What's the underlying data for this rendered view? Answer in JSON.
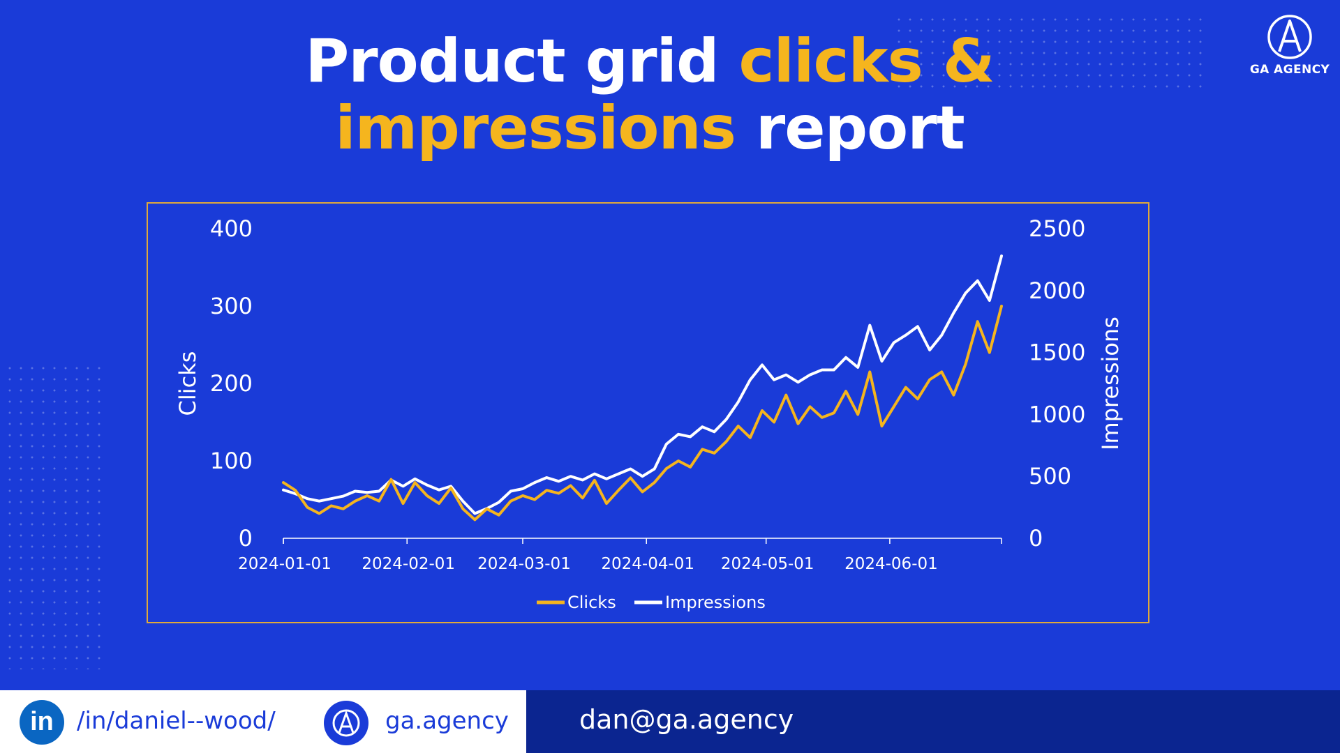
{
  "title": {
    "part1": "Product grid ",
    "part2": "clicks &",
    "part3": "impressions",
    "part4": " report"
  },
  "brand": {
    "logo_text": "GA AGENCY",
    "logo_icon": "ga-monogram-icon"
  },
  "footer": {
    "linkedin_icon": "linkedin-icon",
    "linkedin_label": "in",
    "linkedin_handle": "/in/daniel--wood/",
    "website": "ga.agency",
    "email": "dan@ga.agency"
  },
  "colors": {
    "background": "#1a3bd8",
    "accent": "#f5b51e",
    "clicks_line": "#f5b51e",
    "impressions_line": "#ffffff",
    "footer_dark": "#0b2590"
  },
  "chart_data": {
    "type": "line",
    "title": "",
    "xlabel": "",
    "ylabel": "Clicks",
    "y2label": "Impressions",
    "ylim": [
      0,
      400
    ],
    "y2lim": [
      0,
      2500
    ],
    "yticks": [
      "0",
      "100",
      "200",
      "300",
      "400"
    ],
    "y2ticks": [
      "0",
      "500",
      "1000",
      "1500",
      "2000",
      "2500"
    ],
    "xticks": [
      "2024-01-01",
      "2024-02-01",
      "2024-03-01",
      "2024-04-01",
      "2024-05-01",
      "2024-06-01"
    ],
    "x_range": [
      "2024-01-01",
      "2024-06-29"
    ],
    "legend_position": "bottom-center",
    "grid": false,
    "series": [
      {
        "name": "Clicks",
        "axis": "left",
        "color": "#f5b51e",
        "points": [
          [
            "2024-01-01",
            72
          ],
          [
            "2024-01-04",
            62
          ],
          [
            "2024-01-07",
            40
          ],
          [
            "2024-01-10",
            32
          ],
          [
            "2024-01-13",
            42
          ],
          [
            "2024-01-16",
            38
          ],
          [
            "2024-01-19",
            48
          ],
          [
            "2024-01-22",
            55
          ],
          [
            "2024-01-25",
            48
          ],
          [
            "2024-01-28",
            76
          ],
          [
            "2024-01-31",
            45
          ],
          [
            "2024-02-03",
            72
          ],
          [
            "2024-02-06",
            55
          ],
          [
            "2024-02-09",
            45
          ],
          [
            "2024-02-12",
            65
          ],
          [
            "2024-02-15",
            38
          ],
          [
            "2024-02-18",
            24
          ],
          [
            "2024-02-21",
            38
          ],
          [
            "2024-02-24",
            30
          ],
          [
            "2024-02-27",
            48
          ],
          [
            "2024-03-01",
            55
          ],
          [
            "2024-03-04",
            50
          ],
          [
            "2024-03-07",
            62
          ],
          [
            "2024-03-10",
            58
          ],
          [
            "2024-03-13",
            68
          ],
          [
            "2024-03-16",
            52
          ],
          [
            "2024-03-19",
            75
          ],
          [
            "2024-03-22",
            45
          ],
          [
            "2024-03-25",
            62
          ],
          [
            "2024-03-28",
            78
          ],
          [
            "2024-03-31",
            60
          ],
          [
            "2024-04-03",
            72
          ],
          [
            "2024-04-06",
            90
          ],
          [
            "2024-04-09",
            100
          ],
          [
            "2024-04-12",
            92
          ],
          [
            "2024-04-15",
            115
          ],
          [
            "2024-04-18",
            110
          ],
          [
            "2024-04-21",
            125
          ],
          [
            "2024-04-24",
            145
          ],
          [
            "2024-04-27",
            130
          ],
          [
            "2024-04-30",
            165
          ],
          [
            "2024-05-03",
            150
          ],
          [
            "2024-05-06",
            185
          ],
          [
            "2024-05-09",
            148
          ],
          [
            "2024-05-12",
            170
          ],
          [
            "2024-05-15",
            156
          ],
          [
            "2024-05-18",
            162
          ],
          [
            "2024-05-21",
            190
          ],
          [
            "2024-05-24",
            160
          ],
          [
            "2024-05-27",
            215
          ],
          [
            "2024-05-30",
            145
          ],
          [
            "2024-06-02",
            170
          ],
          [
            "2024-06-05",
            195
          ],
          [
            "2024-06-08",
            180
          ],
          [
            "2024-06-11",
            205
          ],
          [
            "2024-06-14",
            215
          ],
          [
            "2024-06-17",
            185
          ],
          [
            "2024-06-20",
            225
          ],
          [
            "2024-06-23",
            280
          ],
          [
            "2024-06-26",
            240
          ],
          [
            "2024-06-29",
            300
          ]
        ]
      },
      {
        "name": "Impressions",
        "axis": "right",
        "color": "#ffffff",
        "points": [
          [
            "2024-01-01",
            390
          ],
          [
            "2024-01-04",
            360
          ],
          [
            "2024-01-07",
            320
          ],
          [
            "2024-01-10",
            300
          ],
          [
            "2024-01-13",
            320
          ],
          [
            "2024-01-16",
            340
          ],
          [
            "2024-01-19",
            380
          ],
          [
            "2024-01-22",
            370
          ],
          [
            "2024-01-25",
            380
          ],
          [
            "2024-01-28",
            470
          ],
          [
            "2024-01-31",
            420
          ],
          [
            "2024-02-03",
            480
          ],
          [
            "2024-02-06",
            430
          ],
          [
            "2024-02-09",
            390
          ],
          [
            "2024-02-12",
            420
          ],
          [
            "2024-02-15",
            300
          ],
          [
            "2024-02-18",
            200
          ],
          [
            "2024-02-21",
            240
          ],
          [
            "2024-02-24",
            290
          ],
          [
            "2024-02-27",
            380
          ],
          [
            "2024-03-01",
            400
          ],
          [
            "2024-03-04",
            450
          ],
          [
            "2024-03-07",
            490
          ],
          [
            "2024-03-10",
            460
          ],
          [
            "2024-03-13",
            500
          ],
          [
            "2024-03-16",
            470
          ],
          [
            "2024-03-19",
            520
          ],
          [
            "2024-03-22",
            480
          ],
          [
            "2024-03-25",
            520
          ],
          [
            "2024-03-28",
            560
          ],
          [
            "2024-03-31",
            500
          ],
          [
            "2024-04-03",
            560
          ],
          [
            "2024-04-06",
            760
          ],
          [
            "2024-04-09",
            840
          ],
          [
            "2024-04-12",
            820
          ],
          [
            "2024-04-15",
            900
          ],
          [
            "2024-04-18",
            860
          ],
          [
            "2024-04-21",
            960
          ],
          [
            "2024-04-24",
            1100
          ],
          [
            "2024-04-27",
            1280
          ],
          [
            "2024-04-30",
            1400
          ],
          [
            "2024-05-03",
            1280
          ],
          [
            "2024-05-06",
            1320
          ],
          [
            "2024-05-09",
            1260
          ],
          [
            "2024-05-12",
            1320
          ],
          [
            "2024-05-15",
            1360
          ],
          [
            "2024-05-18",
            1360
          ],
          [
            "2024-05-21",
            1460
          ],
          [
            "2024-05-24",
            1380
          ],
          [
            "2024-05-27",
            1720
          ],
          [
            "2024-05-30",
            1430
          ],
          [
            "2024-06-02",
            1580
          ],
          [
            "2024-06-05",
            1640
          ],
          [
            "2024-06-08",
            1710
          ],
          [
            "2024-06-11",
            1520
          ],
          [
            "2024-06-14",
            1640
          ],
          [
            "2024-06-17",
            1820
          ],
          [
            "2024-06-20",
            1980
          ],
          [
            "2024-06-23",
            2080
          ],
          [
            "2024-06-26",
            1920
          ],
          [
            "2024-06-29",
            2280
          ]
        ]
      }
    ]
  }
}
